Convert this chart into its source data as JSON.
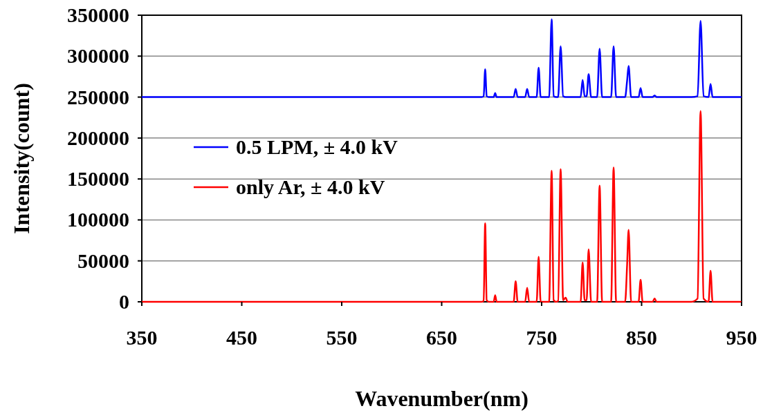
{
  "chart_data": {
    "type": "line",
    "xlabel": "Wavenumber(nm)",
    "ylabel": "Intensity(count)",
    "x": [
      350,
      500,
      650,
      690,
      692,
      693.5,
      695,
      697,
      702,
      703.5,
      705,
      710,
      722,
      724,
      726,
      733.5,
      735.5,
      737.5,
      745,
      747,
      749,
      757.5,
      760,
      762,
      764.5,
      766.5,
      769,
      771.5,
      774,
      776,
      789,
      791,
      793,
      795,
      797,
      799.5,
      805.5,
      808,
      810.5,
      819.5,
      822,
      824.5,
      833.5,
      835.5,
      837,
      839.5,
      847,
      849,
      851,
      861,
      863,
      865,
      900,
      906,
      909,
      912,
      917,
      919,
      921,
      930,
      950
    ],
    "series": [
      {
        "name": "0.5 LPM, ± 4.0 kV",
        "color": "#0000ff",
        "values": [
          250000,
          250000,
          250000,
          250000,
          251000,
          284000,
          251000,
          250000,
          250000,
          255000,
          250000,
          250000,
          250000,
          260000,
          250000,
          250000,
          260000,
          250000,
          250000,
          286000,
          250000,
          250000,
          345000,
          251000,
          250000,
          250000,
          312000,
          251000,
          250000,
          250000,
          250000,
          271000,
          251000,
          251000,
          278000,
          250000,
          250000,
          309000,
          250000,
          250000,
          312000,
          250000,
          250000,
          270000,
          288000,
          250000,
          250000,
          261000,
          250000,
          250000,
          252000,
          250000,
          250000,
          251000,
          343000,
          251000,
          250000,
          266000,
          250000,
          250000,
          250000
        ]
      },
      {
        "name": "only Ar, ± 4.0 kV",
        "color": "#ff0000",
        "values": [
          0,
          0,
          0,
          0,
          1000,
          96000,
          2000,
          0,
          0,
          8000,
          0,
          0,
          0,
          25000,
          0,
          0,
          17000,
          0,
          0,
          55000,
          0,
          0,
          160000,
          2000,
          0,
          1000,
          162000,
          2000,
          5000,
          0,
          0,
          48000,
          2000,
          2000,
          64000,
          0,
          0,
          142000,
          0,
          0,
          164000,
          0,
          0,
          45000,
          88000,
          0,
          0,
          27000,
          0,
          0,
          4000,
          0,
          0,
          4000,
          233000,
          4000,
          0,
          38000,
          0,
          0,
          0
        ]
      }
    ],
    "xlim": [
      350,
      950
    ],
    "xticks": [
      350,
      450,
      550,
      650,
      750,
      850,
      950
    ],
    "ylim": [
      0,
      350000
    ],
    "yticks": [
      0,
      50000,
      100000,
      150000,
      200000,
      250000,
      300000,
      350000
    ],
    "grid": "y",
    "legend": "left",
    "line_style": "solid"
  }
}
